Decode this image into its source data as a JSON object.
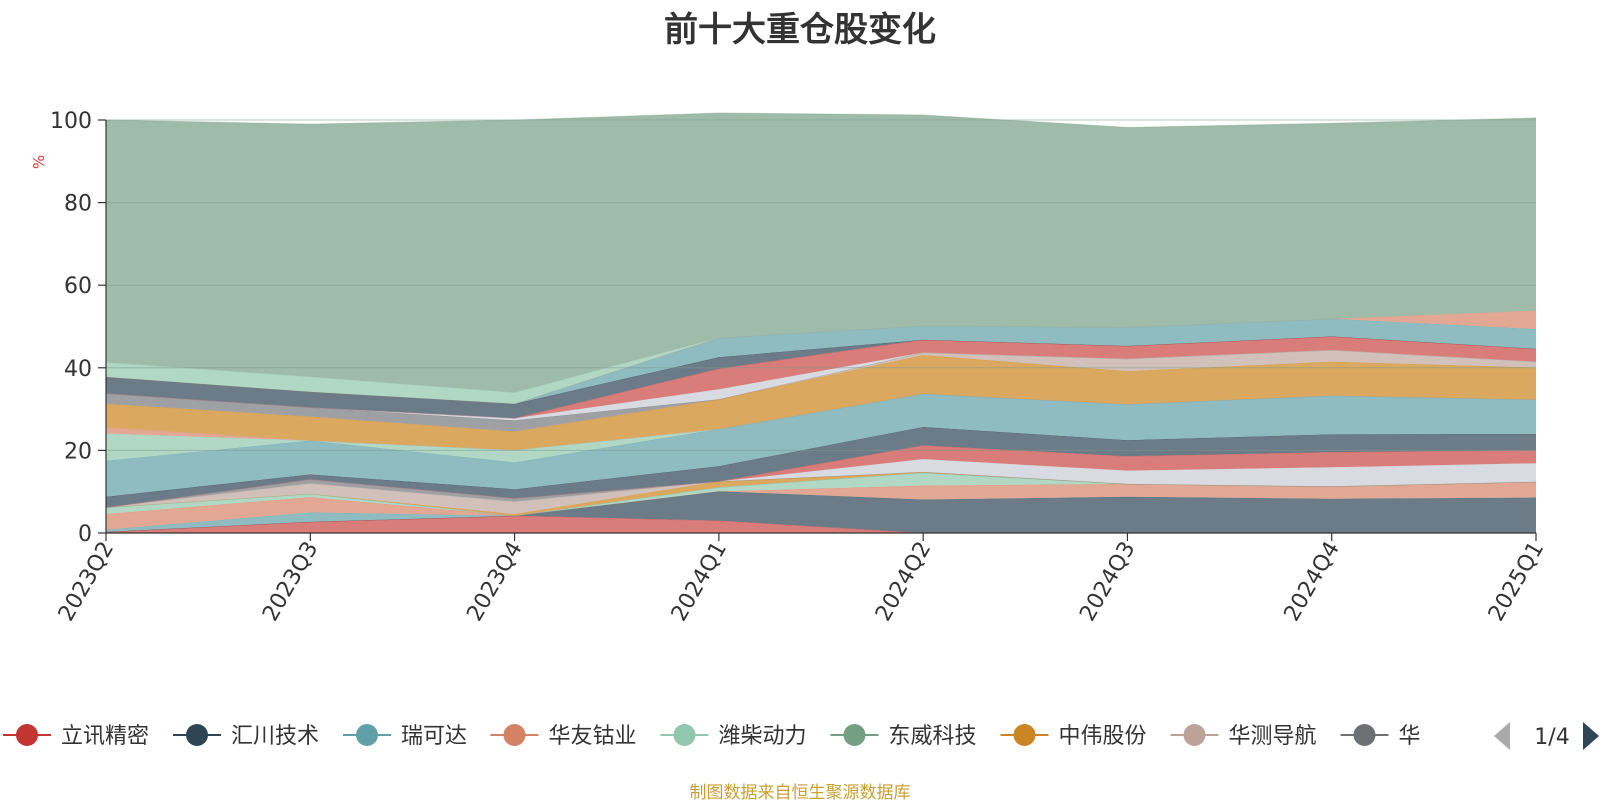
{
  "footer": {
    "source_note": "制图数据来自恒生聚源数据库",
    "color": "#c8a032"
  },
  "legend": {
    "page_indicator": "1/4",
    "truncated_last_label": "华"
  },
  "chart_data": {
    "type": "area",
    "stacked": true,
    "title": "前十大重仓股变化",
    "ylabel": "%",
    "ylabel_color": "#e53935",
    "ylim": [
      0,
      100
    ],
    "yticks": [
      0,
      20,
      40,
      60,
      80,
      100
    ],
    "grid": true,
    "legend_position": "bottom",
    "categories": [
      "2023Q2",
      "2023Q3",
      "2023Q4",
      "2024Q1",
      "2024Q2",
      "2024Q3",
      "2024Q4",
      "2025Q1"
    ],
    "series": [
      {
        "name": "立讯精密",
        "legend": true,
        "color": "#c23531",
        "fill": "#d97d7a",
        "values": [
          0.3,
          2.7,
          4.2,
          3.0,
          0,
          0,
          0,
          0
        ]
      },
      {
        "name": "汇川技术",
        "legend": true,
        "color": "#2f4554",
        "fill": "#6b7b88",
        "values": [
          0,
          0,
          0,
          7.1,
          8.1,
          8.8,
          8.3,
          8.6
        ]
      },
      {
        "name": "瑞可达",
        "legend": true,
        "color": "#61a0a8",
        "fill": "#8fbcc0",
        "values": [
          0.5,
          2.3,
          0,
          0,
          0,
          0,
          0,
          0
        ]
      },
      {
        "name": "华友钴业",
        "legend": true,
        "color": "#d48265",
        "fill": "#e2a894",
        "values": [
          3.8,
          3.7,
          0,
          0,
          3.4,
          3.1,
          3.0,
          3.8
        ]
      },
      {
        "name": "潍柴动力",
        "legend": true,
        "color": "#91c7ae",
        "fill": "#b0d8c5",
        "values": [
          1.6,
          0.8,
          0,
          1.0,
          3.1,
          0,
          0,
          0
        ]
      },
      {
        "name": "东威科技",
        "legend": true,
        "color": "#749f83",
        "fill": "#9fbba9",
        "values": [
          0,
          0,
          0,
          0,
          0,
          0,
          0,
          0
        ]
      },
      {
        "name": "中伟股份",
        "legend": true,
        "color": "#ca8622",
        "fill": "#daa95f",
        "values": [
          0,
          0,
          0.4,
          1.4,
          0.2,
          0,
          0,
          0
        ]
      },
      {
        "name": "华测导航",
        "legend": true,
        "color": "#bda29a",
        "fill": "#d2c0ba",
        "values": [
          0,
          2.5,
          3.0,
          0,
          0,
          0,
          0,
          0
        ]
      },
      {
        "name": "",
        "legend": false,
        "color": "#6e7074",
        "fill": "#9ea0a3",
        "values": [
          0,
          1.0,
          0.8,
          0,
          0,
          0,
          0,
          0
        ]
      },
      {
        "name": "",
        "legend": false,
        "color": "#c8cdd5",
        "fill": "#d8dce2",
        "values": [
          0,
          0,
          0,
          0,
          3.1,
          3.2,
          4.6,
          4.5
        ]
      },
      {
        "name": "",
        "legend": false,
        "color": "#c23531",
        "fill": "#d97d7a",
        "values": [
          0,
          0,
          0,
          0,
          3.3,
          3.5,
          3.7,
          3.1
        ]
      },
      {
        "name": "",
        "legend": false,
        "color": "#2f4554",
        "fill": "#6b7b88",
        "values": [
          2.6,
          1.2,
          2.2,
          3.7,
          4.5,
          3.9,
          4.3,
          4.0
        ]
      },
      {
        "name": "",
        "legend": false,
        "color": "#61a0a8",
        "fill": "#8fbcc0",
        "values": [
          8.7,
          8.2,
          6.5,
          9.0,
          8.0,
          8.7,
          9.4,
          8.3
        ]
      },
      {
        "name": "",
        "legend": false,
        "color": "#91c7ae",
        "fill": "#b0d8c5",
        "values": [
          6.6,
          0,
          3.0,
          0,
          0,
          0,
          0,
          0
        ]
      },
      {
        "name": "",
        "legend": false,
        "color": "#d48265",
        "fill": "#e2a894",
        "values": [
          1.5,
          0,
          0,
          0,
          0,
          0,
          0,
          0
        ]
      },
      {
        "name": "",
        "legend": false,
        "color": "#ca8622",
        "fill": "#daa95f",
        "values": [
          5.7,
          5.8,
          4.5,
          7.2,
          9.4,
          8.0,
          8.2,
          7.8
        ]
      },
      {
        "name": "",
        "legend": false,
        "color": "#bda29a",
        "fill": "#d2c0ba",
        "values": [
          0,
          0,
          0,
          0,
          0.6,
          3.0,
          2.8,
          1.4
        ]
      },
      {
        "name": "",
        "legend": false,
        "color": "#6e7074",
        "fill": "#9ea0a3",
        "values": [
          2.5,
          2.2,
          2.7,
          0,
          0,
          0,
          0,
          0
        ]
      },
      {
        "name": "",
        "legend": false,
        "color": "#c8cdd5",
        "fill": "#d8dce2",
        "values": [
          0,
          0,
          0.5,
          2.4,
          0,
          0,
          0,
          0
        ]
      },
      {
        "name": "",
        "legend": false,
        "color": "#c23531",
        "fill": "#d97d7a",
        "values": [
          0,
          0,
          0,
          5.0,
          3.1,
          3.1,
          3.3,
          3.1
        ]
      },
      {
        "name": "",
        "legend": false,
        "color": "#2f4554",
        "fill": "#6b7b88",
        "values": [
          4.0,
          3.8,
          3.5,
          2.8,
          0,
          0,
          0,
          0
        ]
      },
      {
        "name": "",
        "legend": false,
        "color": "#61a0a8",
        "fill": "#8fbcc0",
        "values": [
          0,
          0,
          0,
          4.7,
          3.4,
          4.5,
          4.3,
          4.8
        ]
      },
      {
        "name": "",
        "legend": false,
        "color": "#d48265",
        "fill": "#e2a894",
        "values": [
          0,
          0,
          0,
          0,
          0,
          0,
          0,
          4.5
        ]
      },
      {
        "name": "",
        "legend": false,
        "color": "#91c7ae",
        "fill": "#b0d8c5",
        "values": [
          3.5,
          3.6,
          2.7,
          0,
          0,
          0,
          0,
          0
        ]
      },
      {
        "name": "",
        "legend": false,
        "color": "#749f83",
        "fill": "#9fbba9",
        "values": [
          58.7,
          61.2,
          66.0,
          54.4,
          51.0,
          48.4,
          47.3,
          46.6
        ]
      }
    ]
  }
}
